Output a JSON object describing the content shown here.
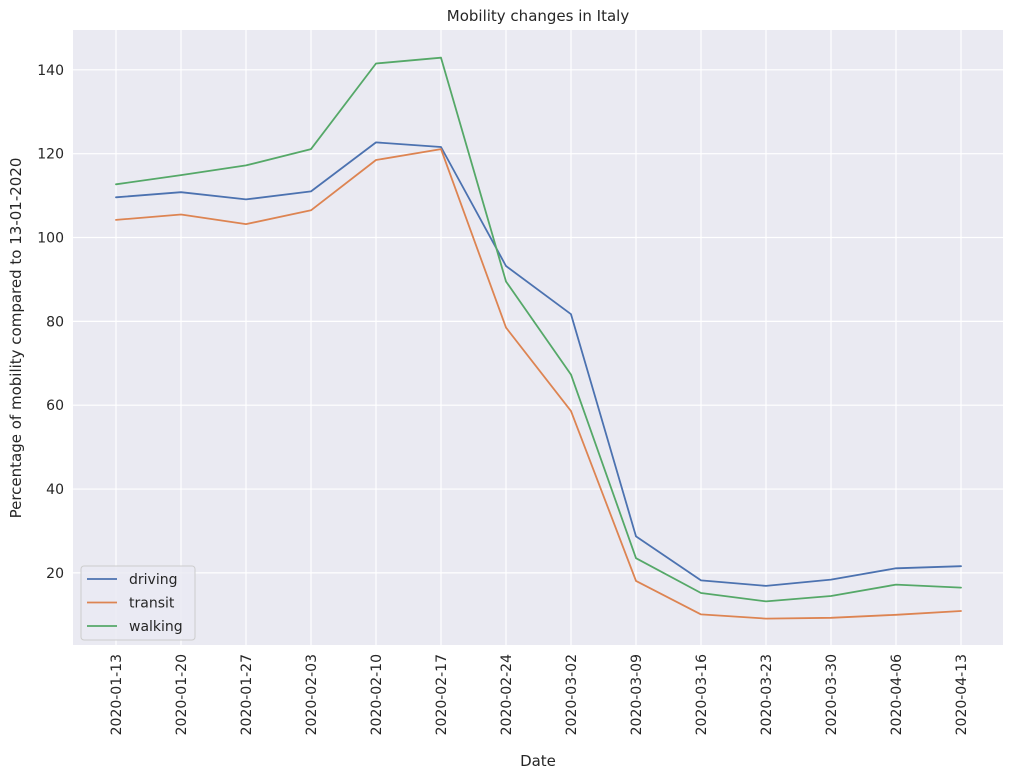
{
  "chart_data": {
    "type": "line",
    "title": "Mobility changes in Italy",
    "xlabel": "Date",
    "ylabel": "Percentage of mobility compared to 13-01-2020",
    "ylim": [
      2.8,
      149.5
    ],
    "yticks": [
      20,
      40,
      60,
      80,
      100,
      120,
      140
    ],
    "grid": true,
    "legend_position": "lower-left",
    "x": [
      "2020-01-13",
      "2020-01-20",
      "2020-01-27",
      "2020-02-03",
      "2020-02-10",
      "2020-02-17",
      "2020-02-24",
      "2020-03-02",
      "2020-03-09",
      "2020-03-16",
      "2020-03-23",
      "2020-03-30",
      "2020-04-06",
      "2020-04-13"
    ],
    "series": [
      {
        "name": "driving",
        "color": "#4c72b0",
        "values": [
          109.6,
          110.8,
          109.1,
          111.0,
          122.7,
          121.6,
          93.2,
          81.7,
          28.7,
          18.2,
          16.9,
          18.4,
          21.1,
          21.6
        ]
      },
      {
        "name": "transit",
        "color": "#dd8452",
        "values": [
          104.2,
          105.5,
          103.2,
          106.5,
          118.5,
          121.1,
          78.5,
          58.6,
          18.1,
          10.1,
          9.1,
          9.3,
          10.0,
          10.9
        ]
      },
      {
        "name": "walking",
        "color": "#55a868",
        "values": [
          112.7,
          114.9,
          117.2,
          121.1,
          141.5,
          142.9,
          89.5,
          67.3,
          23.5,
          15.2,
          13.2,
          14.5,
          17.2,
          16.5
        ]
      }
    ]
  }
}
